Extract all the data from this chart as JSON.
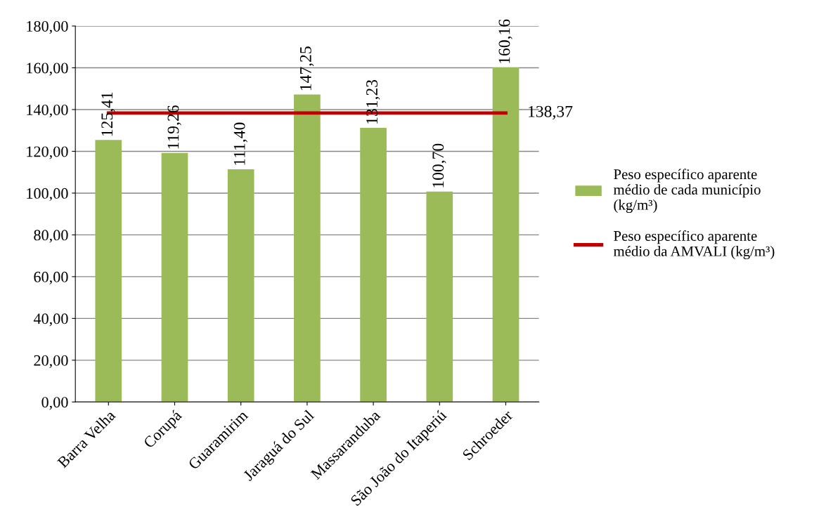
{
  "chart_data": {
    "type": "bar",
    "categories": [
      "Barra Velha",
      "Corupá",
      "Guaramirim",
      "Jaraguá do Sul",
      "Massaranduba",
      "São João do Itaperiú",
      "Schroeder"
    ],
    "series": [
      {
        "name": "Peso específico aparente\nmédio de cada município\n(kg/m³)",
        "color": "#9bbb59",
        "values": [
          125.41,
          119.26,
          111.4,
          147.25,
          131.23,
          100.7,
          160.16
        ],
        "value_labels": [
          "125,41",
          "119,26",
          "111,40",
          "147,25",
          "131,23",
          "100,70",
          "160,16"
        ]
      },
      {
        "name": "Peso específico aparente\nmédio da AMVALI (kg/m³)",
        "type": "line",
        "color": "#c00000",
        "values": [
          138.37,
          138.37,
          138.37,
          138.37,
          138.37,
          138.37,
          138.37
        ],
        "value_labels": [
          null,
          null,
          null,
          null,
          null,
          null,
          "138,37"
        ]
      }
    ],
    "ylim": [
      0,
      180
    ],
    "yticks": [
      {
        "value": 0,
        "label": "0,00"
      },
      {
        "value": 20,
        "label": "20,00"
      },
      {
        "value": 40,
        "label": "40,00"
      },
      {
        "value": 60,
        "label": "60,00"
      },
      {
        "value": 80,
        "label": "80,00"
      },
      {
        "value": 100,
        "label": "100,00"
      },
      {
        "value": 120,
        "label": "120,00"
      },
      {
        "value": 140,
        "label": "140,00"
      },
      {
        "value": 160,
        "label": "160,00"
      },
      {
        "value": 180,
        "label": "180,00"
      }
    ],
    "grid": "y",
    "legend": "right",
    "marker": "none",
    "line_style": "solid"
  }
}
